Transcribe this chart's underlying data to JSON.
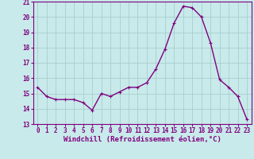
{
  "x": [
    0,
    1,
    2,
    3,
    4,
    5,
    6,
    7,
    8,
    9,
    10,
    11,
    12,
    13,
    14,
    15,
    16,
    17,
    18,
    19,
    20,
    21,
    22,
    23
  ],
  "y": [
    15.4,
    14.8,
    14.6,
    14.6,
    14.6,
    14.4,
    13.9,
    15.0,
    14.8,
    15.1,
    15.4,
    15.4,
    15.7,
    16.6,
    17.9,
    19.6,
    20.7,
    20.6,
    20.0,
    18.3,
    15.9,
    15.4,
    14.8,
    13.3
  ],
  "line_color": "#800080",
  "marker": "+",
  "marker_size": 3,
  "bg_color": "#c8eaea",
  "grid_color": "#a8cece",
  "xlabel": "Windchill (Refroidissement éolien,°C)",
  "ylim": [
    13,
    21
  ],
  "xlim": [
    -0.5,
    23.5
  ],
  "yticks": [
    13,
    14,
    15,
    16,
    17,
    18,
    19,
    20,
    21
  ],
  "xticks": [
    0,
    1,
    2,
    3,
    4,
    5,
    6,
    7,
    8,
    9,
    10,
    11,
    12,
    13,
    14,
    15,
    16,
    17,
    18,
    19,
    20,
    21,
    22,
    23
  ],
  "tick_fontsize": 5.5,
  "xlabel_fontsize": 6.5,
  "line_width": 1.0,
  "marker_edge_width": 0.8
}
